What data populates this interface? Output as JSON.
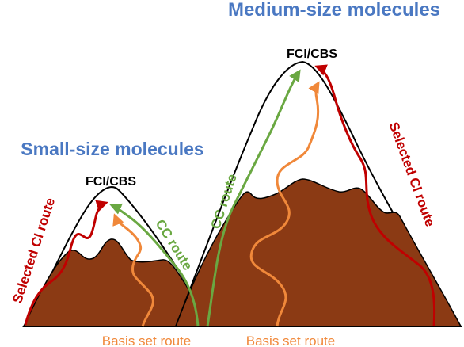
{
  "titles": {
    "medium": "Medium-size molecules",
    "small": "Small-size molecules"
  },
  "peaks": {
    "small": "FCI/CBS",
    "medium": "FCI/CBS"
  },
  "routes": {
    "small_ci": "Selected CI route",
    "small_cc": "CC route",
    "medium_cc": "CC route",
    "medium_ci": "Selected CI route",
    "basis_left": "Basis set route",
    "basis_right": "Basis set route"
  },
  "colors": {
    "title_blue": "#4a78c2",
    "mountain_brown": "#8b3a14",
    "mountain_outline": "#000000",
    "snow": "#ffffff",
    "ci_red": "#c00000",
    "cc_green": "#6aa842",
    "basis_orange": "#f0883a"
  }
}
